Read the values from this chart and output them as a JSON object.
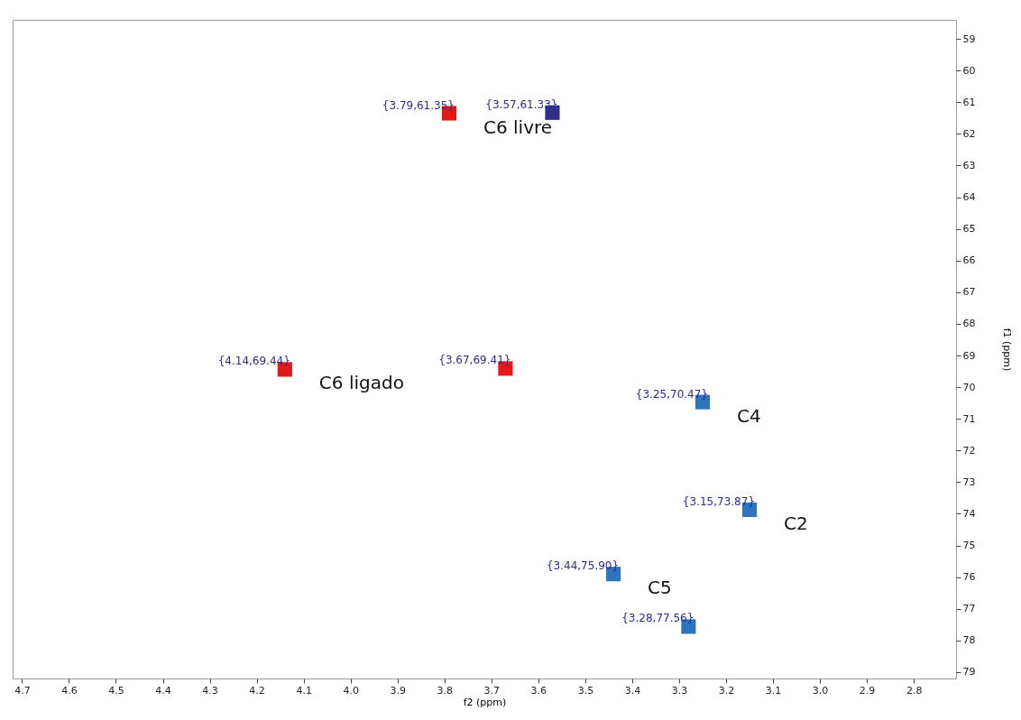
{
  "chart_data": {
    "type": "scatter",
    "xlabel": "f2 (ppm)",
    "ylabel": "f1 (ppm)",
    "xlim": [
      4.72,
      2.71
    ],
    "ylim": [
      79.2,
      58.4
    ],
    "xticks": [
      4.7,
      4.6,
      4.5,
      4.4,
      4.3,
      4.2,
      4.1,
      {
        "value": 4,
        "label": "4.0"
      },
      3.9,
      3.8,
      3.7,
      3.6,
      3.5,
      3.4,
      3.3,
      3.2,
      3.1,
      {
        "value": 3,
        "label": "3.0"
      },
      2.9,
      2.8
    ],
    "yticks": [
      59,
      60,
      61,
      62,
      63,
      64,
      65,
      66,
      67,
      68,
      69,
      70,
      71,
      72,
      73,
      74,
      75,
      76,
      77,
      78,
      79
    ],
    "grid": false,
    "marker": "square",
    "series": [
      {
        "color": "#e00000",
        "x": [
          3.79,
          4.14,
          3.67
        ],
        "values": [
          61.35,
          69.44,
          69.41
        ],
        "value_labels": [
          "{3.79,61.35}",
          "{4.14,69.44}",
          "{3.67,69.41}"
        ]
      },
      {
        "color": "#1a1a80",
        "x": [
          3.57
        ],
        "values": [
          61.33
        ],
        "value_labels": [
          "{3.57,61.33}"
        ]
      },
      {
        "color": "#1565b5",
        "x": [
          3.25,
          3.15,
          3.44,
          3.28
        ],
        "values": [
          70.47,
          73.87,
          75.9,
          77.56
        ],
        "value_labels": [
          "{3.25,70.47}",
          "{3.15,73.87}",
          "{3.44,75.90}",
          "{3.28,77.56}"
        ]
      }
    ],
    "annotations": [
      {
        "text": "C6 livre",
        "x": 3.79,
        "y": 61.35
      },
      {
        "text": "C6 ligado",
        "x": 4.14,
        "y": 69.44
      },
      {
        "text": "C4",
        "x": 3.25,
        "y": 70.47
      },
      {
        "text": "C2",
        "x": 3.15,
        "y": 73.87
      },
      {
        "text": "C5",
        "x": 3.44,
        "y": 75.9
      }
    ]
  }
}
